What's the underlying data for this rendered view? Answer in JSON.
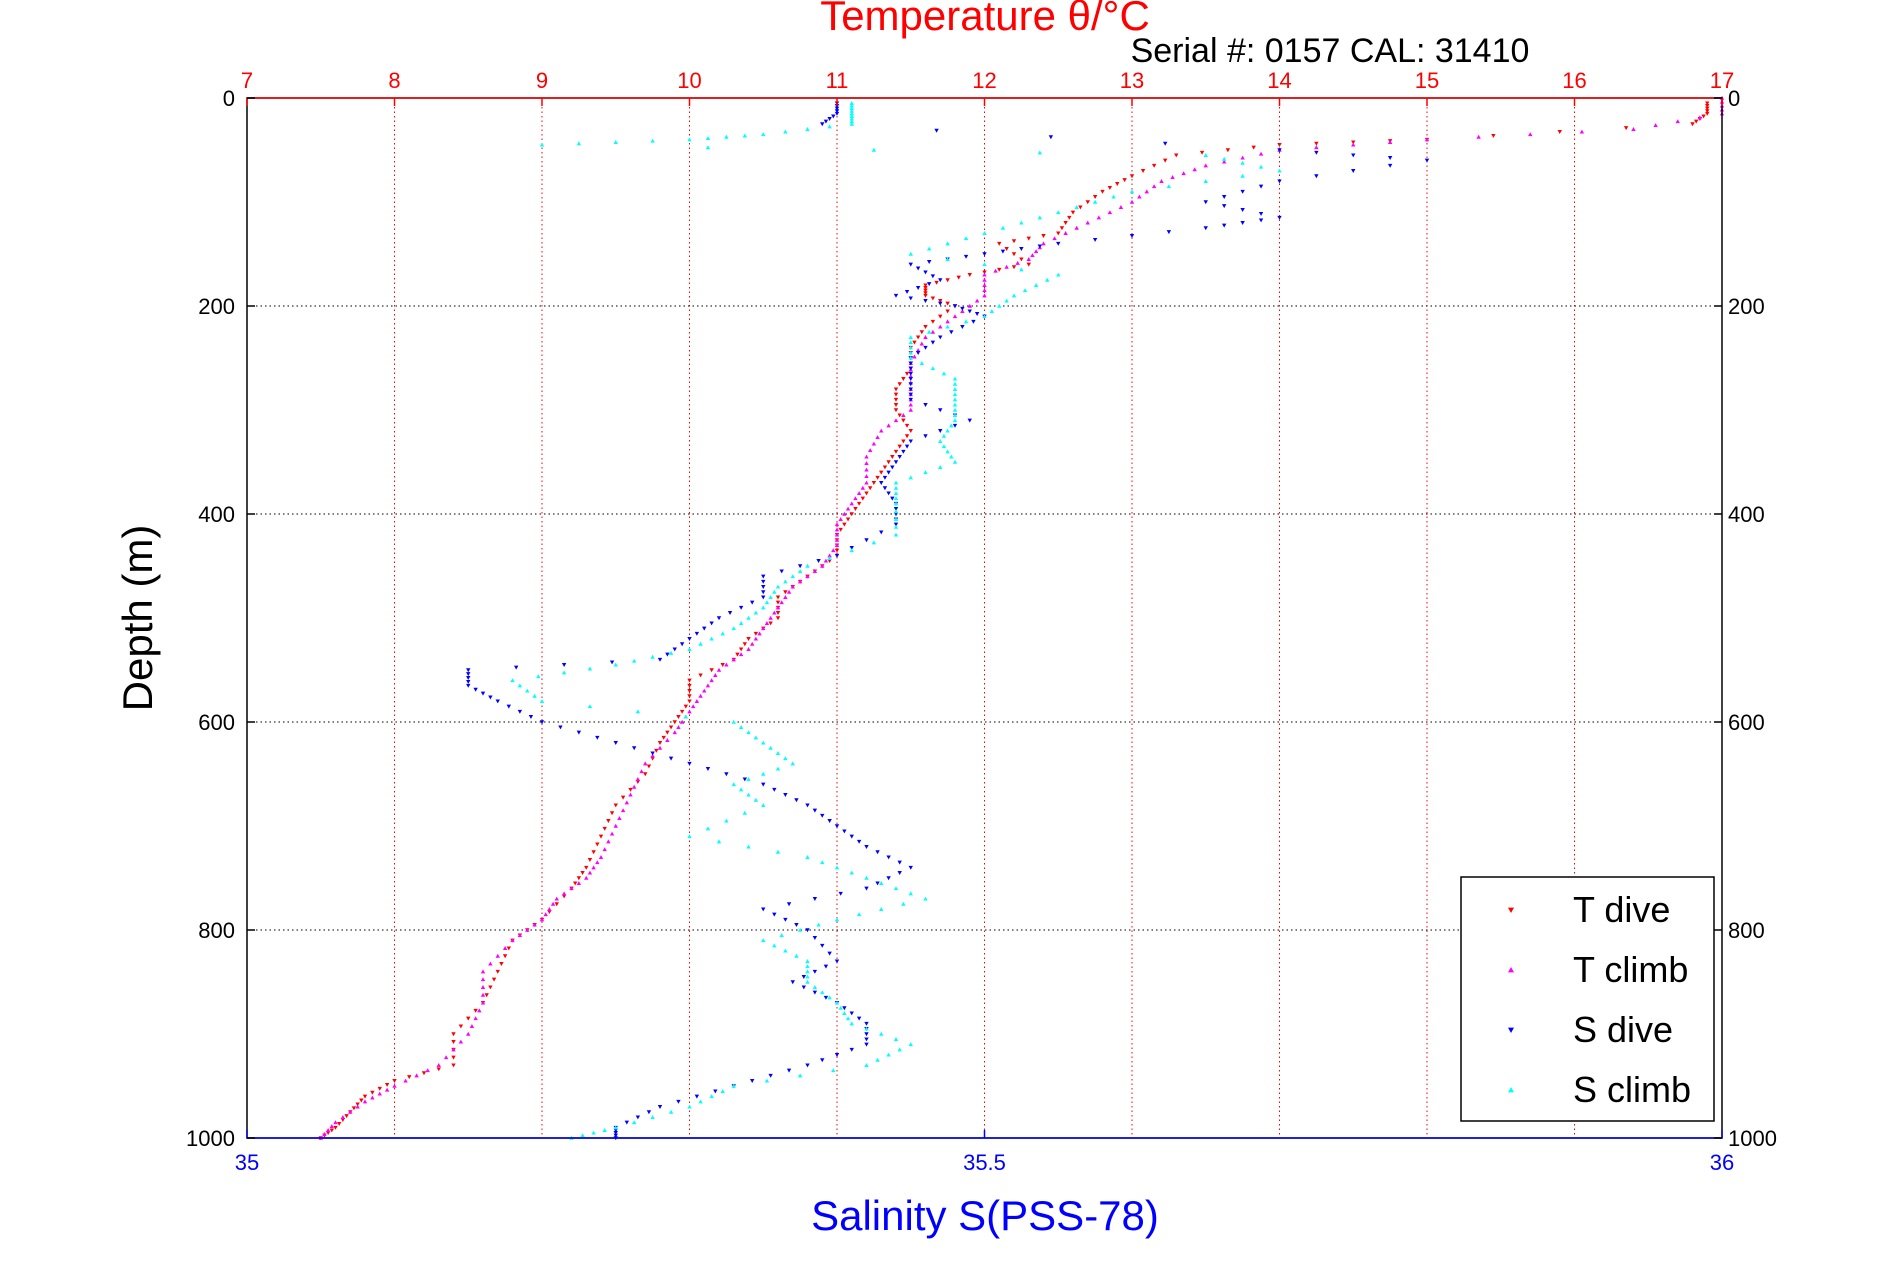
{
  "chart_data": {
    "type": "scatter",
    "title": "Temperature θ/°C",
    "subtitle": "Serial #: 0157  CAL: 31410",
    "xlabel_top": "Temperature θ/°C",
    "xlabel_bottom": "Salinity S(PSS-78)",
    "ylabel": "Depth (m)",
    "temperature_axis": {
      "range": [
        7,
        17
      ],
      "ticks": [
        "7",
        "8",
        "9",
        "10",
        "11",
        "12",
        "13",
        "14",
        "15",
        "16",
        "17"
      ],
      "color": "#ff0000"
    },
    "salinity_axis": {
      "range": [
        35,
        36
      ],
      "ticks": [
        "35",
        "35.5",
        "36"
      ],
      "color": "#0000ff"
    },
    "depth_axis": {
      "range": [
        0,
        1000
      ],
      "reversed": true,
      "ticks_left": [
        "0",
        "200",
        "400",
        "600",
        "800",
        "1000"
      ],
      "ticks_right": [
        "0",
        "200",
        "400",
        "600",
        "800",
        "1000"
      ]
    },
    "grid": true,
    "legend_position": "bottom-right",
    "legend": [
      {
        "label": "T dive",
        "color": "#ff0000",
        "marker": "triangle-down"
      },
      {
        "label": "T climb",
        "color": "#ff00ff",
        "marker": "triangle-up"
      },
      {
        "label": "S dive",
        "color": "#0000ff",
        "marker": "triangle-down"
      },
      {
        "label": "S climb",
        "color": "#00ffff",
        "marker": "triangle-up"
      }
    ],
    "series": [
      {
        "name": "T dive",
        "axis": "temperature",
        "color": "#ff0000",
        "points": [
          [
            16.9,
            5
          ],
          [
            16.9,
            15
          ],
          [
            16.8,
            25
          ],
          [
            15.0,
            40
          ],
          [
            14.0,
            45
          ],
          [
            13.3,
            55
          ],
          [
            13.0,
            75
          ],
          [
            12.8,
            90
          ],
          [
            12.6,
            110
          ],
          [
            12.5,
            130
          ],
          [
            12.1,
            140
          ],
          [
            12.3,
            160
          ],
          [
            11.9,
            170
          ],
          [
            11.6,
            180
          ],
          [
            11.6,
            190
          ],
          [
            11.8,
            200
          ],
          [
            11.6,
            220
          ],
          [
            11.5,
            240
          ],
          [
            11.5,
            260
          ],
          [
            11.4,
            280
          ],
          [
            11.4,
            300
          ],
          [
            11.5,
            320
          ],
          [
            11.4,
            340
          ],
          [
            11.3,
            360
          ],
          [
            11.2,
            380
          ],
          [
            11.1,
            400
          ],
          [
            11.0,
            420
          ],
          [
            11.0,
            440
          ],
          [
            10.8,
            460
          ],
          [
            10.6,
            480
          ],
          [
            10.6,
            500
          ],
          [
            10.4,
            520
          ],
          [
            10.3,
            540
          ],
          [
            10.0,
            560
          ],
          [
            10.0,
            580
          ],
          [
            9.9,
            600
          ],
          [
            9.8,
            620
          ],
          [
            9.7,
            650
          ],
          [
            9.5,
            680
          ],
          [
            9.4,
            710
          ],
          [
            9.3,
            740
          ],
          [
            9.2,
            760
          ],
          [
            9.0,
            790
          ],
          [
            8.8,
            810
          ],
          [
            8.7,
            840
          ],
          [
            8.6,
            870
          ],
          [
            8.4,
            900
          ],
          [
            8.4,
            930
          ],
          [
            8.0,
            945
          ],
          [
            7.8,
            960
          ],
          [
            7.7,
            975
          ],
          [
            7.6,
            990
          ],
          [
            7.5,
            1000
          ]
        ]
      },
      {
        "name": "T climb",
        "axis": "temperature",
        "color": "#ff00ff",
        "points": [
          [
            17.0,
            0
          ],
          [
            17.0,
            15
          ],
          [
            16.4,
            30
          ],
          [
            15.0,
            40
          ],
          [
            14.0,
            50
          ],
          [
            13.5,
            65
          ],
          [
            13.2,
            80
          ],
          [
            13.0,
            100
          ],
          [
            12.7,
            120
          ],
          [
            12.4,
            140
          ],
          [
            12.3,
            155
          ],
          [
            12.0,
            170
          ],
          [
            12.0,
            190
          ],
          [
            11.8,
            210
          ],
          [
            11.6,
            230
          ],
          [
            11.5,
            255
          ],
          [
            11.5,
            280
          ],
          [
            11.5,
            300
          ],
          [
            11.3,
            320
          ],
          [
            11.2,
            345
          ],
          [
            11.2,
            370
          ],
          [
            11.1,
            390
          ],
          [
            11.0,
            410
          ],
          [
            11.0,
            430
          ],
          [
            10.9,
            450
          ],
          [
            10.7,
            470
          ],
          [
            10.6,
            490
          ],
          [
            10.5,
            510
          ],
          [
            10.4,
            530
          ],
          [
            10.2,
            550
          ],
          [
            10.1,
            570
          ],
          [
            10.0,
            590
          ],
          [
            9.9,
            610
          ],
          [
            9.7,
            640
          ],
          [
            9.6,
            670
          ],
          [
            9.5,
            700
          ],
          [
            9.4,
            730
          ],
          [
            9.3,
            750
          ],
          [
            9.1,
            770
          ],
          [
            9.0,
            790
          ],
          [
            8.8,
            810
          ],
          [
            8.6,
            840
          ],
          [
            8.6,
            870
          ],
          [
            8.5,
            900
          ],
          [
            8.3,
            930
          ],
          [
            8.0,
            950
          ],
          [
            7.8,
            965
          ],
          [
            7.6,
            985
          ],
          [
            7.5,
            1000
          ]
        ]
      },
      {
        "name": "S dive",
        "axis": "salinity",
        "color": "#0000ff",
        "points": [
          [
            35.4,
            5
          ],
          [
            35.4,
            15
          ],
          [
            35.39,
            25
          ],
          [
            35.7,
            50
          ],
          [
            35.8,
            60
          ],
          [
            35.7,
            80
          ],
          [
            35.65,
            100
          ],
          [
            35.7,
            115
          ],
          [
            35.65,
            125
          ],
          [
            35.55,
            140
          ],
          [
            35.5,
            150
          ],
          [
            35.45,
            160
          ],
          [
            35.47,
            175
          ],
          [
            35.44,
            190
          ],
          [
            35.48,
            200
          ],
          [
            35.5,
            210
          ],
          [
            35.47,
            230
          ],
          [
            35.45,
            250
          ],
          [
            35.45,
            270
          ],
          [
            35.45,
            290
          ],
          [
            35.49,
            310
          ],
          [
            35.45,
            330
          ],
          [
            35.44,
            350
          ],
          [
            35.43,
            370
          ],
          [
            35.44,
            390
          ],
          [
            35.44,
            410
          ],
          [
            35.4,
            440
          ],
          [
            35.35,
            460
          ],
          [
            35.35,
            480
          ],
          [
            35.32,
            500
          ],
          [
            35.3,
            520
          ],
          [
            35.28,
            540
          ],
          [
            35.15,
            550
          ],
          [
            35.15,
            565
          ],
          [
            35.17,
            580
          ],
          [
            35.2,
            600
          ],
          [
            35.25,
            620
          ],
          [
            35.3,
            640
          ],
          [
            35.35,
            660
          ],
          [
            35.38,
            680
          ],
          [
            35.4,
            700
          ],
          [
            35.42,
            720
          ],
          [
            35.45,
            740
          ],
          [
            35.42,
            760
          ],
          [
            35.35,
            780
          ],
          [
            35.38,
            800
          ],
          [
            35.4,
            830
          ],
          [
            35.37,
            850
          ],
          [
            35.4,
            870
          ],
          [
            35.42,
            890
          ],
          [
            35.42,
            910
          ],
          [
            35.38,
            930
          ],
          [
            35.33,
            950
          ],
          [
            35.28,
            970
          ],
          [
            35.25,
            990
          ],
          [
            35.25,
            1000
          ]
        ]
      },
      {
        "name": "S climb",
        "axis": "salinity",
        "color": "#00ffff",
        "points": [
          [
            35.41,
            5
          ],
          [
            35.41,
            15
          ],
          [
            35.41,
            25
          ],
          [
            35.35,
            35
          ],
          [
            35.3,
            40
          ],
          [
            35.2,
            45
          ],
          [
            35.65,
            55
          ],
          [
            35.7,
            70
          ],
          [
            35.6,
            90
          ],
          [
            35.55,
            110
          ],
          [
            35.5,
            130
          ],
          [
            35.45,
            150
          ],
          [
            35.55,
            170
          ],
          [
            35.52,
            190
          ],
          [
            35.5,
            210
          ],
          [
            35.45,
            230
          ],
          [
            35.45,
            250
          ],
          [
            35.48,
            270
          ],
          [
            35.48,
            290
          ],
          [
            35.48,
            310
          ],
          [
            35.47,
            330
          ],
          [
            35.48,
            350
          ],
          [
            35.44,
            370
          ],
          [
            35.44,
            390
          ],
          [
            35.44,
            420
          ],
          [
            35.38,
            450
          ],
          [
            35.36,
            470
          ],
          [
            35.35,
            490
          ],
          [
            35.33,
            510
          ],
          [
            35.3,
            530
          ],
          [
            35.25,
            545
          ],
          [
            35.18,
            560
          ],
          [
            35.2,
            580
          ],
          [
            35.33,
            600
          ],
          [
            35.35,
            620
          ],
          [
            35.37,
            640
          ],
          [
            35.33,
            660
          ],
          [
            35.35,
            680
          ],
          [
            35.3,
            710
          ],
          [
            35.38,
            730
          ],
          [
            35.42,
            750
          ],
          [
            35.46,
            770
          ],
          [
            35.4,
            790
          ],
          [
            35.35,
            810
          ],
          [
            35.38,
            830
          ],
          [
            35.38,
            850
          ],
          [
            35.4,
            870
          ],
          [
            35.41,
            890
          ],
          [
            35.45,
            910
          ],
          [
            35.42,
            930
          ],
          [
            35.33,
            950
          ],
          [
            35.3,
            970
          ],
          [
            35.25,
            990
          ],
          [
            35.22,
            1000
          ]
        ]
      }
    ]
  }
}
